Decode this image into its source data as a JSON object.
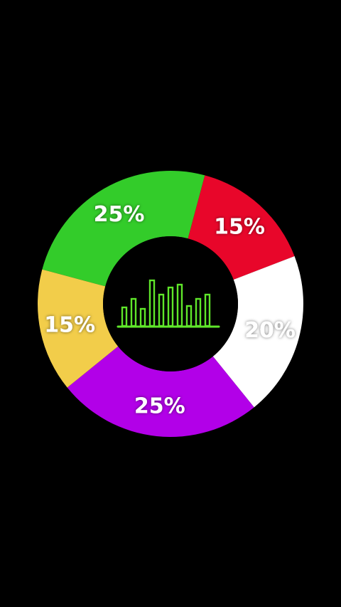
{
  "chart_data": {
    "type": "pie",
    "style": "donut",
    "title": "",
    "center_icon": "bar-chart-icon",
    "center_icon_color": "#5fe62a",
    "center_background": "#000000",
    "background": "#000000",
    "slices": [
      {
        "value": 25,
        "label": "25%",
        "color": "#33cc2a",
        "label_color": "#ffffff"
      },
      {
        "value": 15,
        "label": "15%",
        "color": "#e8062a",
        "label_color": "#ffffff"
      },
      {
        "value": 20,
        "label": "20%",
        "color": "#ffffff",
        "label_color": "#ffffff"
      },
      {
        "value": 25,
        "label": "25%",
        "color": "#b200e8",
        "label_color": "#ffffff"
      },
      {
        "value": 15,
        "label": "15%",
        "color": "#f2cd4a",
        "label_color": "#ffffff"
      }
    ]
  }
}
